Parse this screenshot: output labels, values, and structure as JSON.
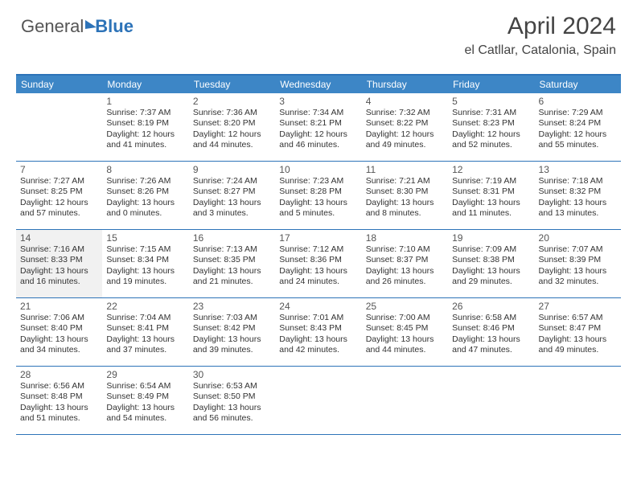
{
  "logo": {
    "text1": "General",
    "text2": "Blue"
  },
  "title": "April 2024",
  "subtitle": "el Catllar, Catalonia, Spain",
  "colors": {
    "header_bg": "#3d86c6",
    "border": "#2d73b8",
    "shade": "#f1f1f1",
    "text": "#333333",
    "logo_blue": "#2d73b8",
    "logo_gray": "#555555"
  },
  "day_headers": [
    "Sunday",
    "Monday",
    "Tuesday",
    "Wednesday",
    "Thursday",
    "Friday",
    "Saturday"
  ],
  "weeks": [
    [
      {
        "empty": true
      },
      {
        "n": "1",
        "sr": "Sunrise: 7:37 AM",
        "ss": "Sunset: 8:19 PM",
        "d1": "Daylight: 12 hours",
        "d2": "and 41 minutes."
      },
      {
        "n": "2",
        "sr": "Sunrise: 7:36 AM",
        "ss": "Sunset: 8:20 PM",
        "d1": "Daylight: 12 hours",
        "d2": "and 44 minutes."
      },
      {
        "n": "3",
        "sr": "Sunrise: 7:34 AM",
        "ss": "Sunset: 8:21 PM",
        "d1": "Daylight: 12 hours",
        "d2": "and 46 minutes."
      },
      {
        "n": "4",
        "sr": "Sunrise: 7:32 AM",
        "ss": "Sunset: 8:22 PM",
        "d1": "Daylight: 12 hours",
        "d2": "and 49 minutes."
      },
      {
        "n": "5",
        "sr": "Sunrise: 7:31 AM",
        "ss": "Sunset: 8:23 PM",
        "d1": "Daylight: 12 hours",
        "d2": "and 52 minutes."
      },
      {
        "n": "6",
        "sr": "Sunrise: 7:29 AM",
        "ss": "Sunset: 8:24 PM",
        "d1": "Daylight: 12 hours",
        "d2": "and 55 minutes."
      }
    ],
    [
      {
        "n": "7",
        "sr": "Sunrise: 7:27 AM",
        "ss": "Sunset: 8:25 PM",
        "d1": "Daylight: 12 hours",
        "d2": "and 57 minutes."
      },
      {
        "n": "8",
        "sr": "Sunrise: 7:26 AM",
        "ss": "Sunset: 8:26 PM",
        "d1": "Daylight: 13 hours",
        "d2": "and 0 minutes."
      },
      {
        "n": "9",
        "sr": "Sunrise: 7:24 AM",
        "ss": "Sunset: 8:27 PM",
        "d1": "Daylight: 13 hours",
        "d2": "and 3 minutes."
      },
      {
        "n": "10",
        "sr": "Sunrise: 7:23 AM",
        "ss": "Sunset: 8:28 PM",
        "d1": "Daylight: 13 hours",
        "d2": "and 5 minutes."
      },
      {
        "n": "11",
        "sr": "Sunrise: 7:21 AM",
        "ss": "Sunset: 8:30 PM",
        "d1": "Daylight: 13 hours",
        "d2": "and 8 minutes."
      },
      {
        "n": "12",
        "sr": "Sunrise: 7:19 AM",
        "ss": "Sunset: 8:31 PM",
        "d1": "Daylight: 13 hours",
        "d2": "and 11 minutes."
      },
      {
        "n": "13",
        "sr": "Sunrise: 7:18 AM",
        "ss": "Sunset: 8:32 PM",
        "d1": "Daylight: 13 hours",
        "d2": "and 13 minutes."
      }
    ],
    [
      {
        "n": "14",
        "sr": "Sunrise: 7:16 AM",
        "ss": "Sunset: 8:33 PM",
        "d1": "Daylight: 13 hours",
        "d2": "and 16 minutes.",
        "shade": true
      },
      {
        "n": "15",
        "sr": "Sunrise: 7:15 AM",
        "ss": "Sunset: 8:34 PM",
        "d1": "Daylight: 13 hours",
        "d2": "and 19 minutes."
      },
      {
        "n": "16",
        "sr": "Sunrise: 7:13 AM",
        "ss": "Sunset: 8:35 PM",
        "d1": "Daylight: 13 hours",
        "d2": "and 21 minutes."
      },
      {
        "n": "17",
        "sr": "Sunrise: 7:12 AM",
        "ss": "Sunset: 8:36 PM",
        "d1": "Daylight: 13 hours",
        "d2": "and 24 minutes."
      },
      {
        "n": "18",
        "sr": "Sunrise: 7:10 AM",
        "ss": "Sunset: 8:37 PM",
        "d1": "Daylight: 13 hours",
        "d2": "and 26 minutes."
      },
      {
        "n": "19",
        "sr": "Sunrise: 7:09 AM",
        "ss": "Sunset: 8:38 PM",
        "d1": "Daylight: 13 hours",
        "d2": "and 29 minutes."
      },
      {
        "n": "20",
        "sr": "Sunrise: 7:07 AM",
        "ss": "Sunset: 8:39 PM",
        "d1": "Daylight: 13 hours",
        "d2": "and 32 minutes."
      }
    ],
    [
      {
        "n": "21",
        "sr": "Sunrise: 7:06 AM",
        "ss": "Sunset: 8:40 PM",
        "d1": "Daylight: 13 hours",
        "d2": "and 34 minutes."
      },
      {
        "n": "22",
        "sr": "Sunrise: 7:04 AM",
        "ss": "Sunset: 8:41 PM",
        "d1": "Daylight: 13 hours",
        "d2": "and 37 minutes."
      },
      {
        "n": "23",
        "sr": "Sunrise: 7:03 AM",
        "ss": "Sunset: 8:42 PM",
        "d1": "Daylight: 13 hours",
        "d2": "and 39 minutes."
      },
      {
        "n": "24",
        "sr": "Sunrise: 7:01 AM",
        "ss": "Sunset: 8:43 PM",
        "d1": "Daylight: 13 hours",
        "d2": "and 42 minutes."
      },
      {
        "n": "25",
        "sr": "Sunrise: 7:00 AM",
        "ss": "Sunset: 8:45 PM",
        "d1": "Daylight: 13 hours",
        "d2": "and 44 minutes."
      },
      {
        "n": "26",
        "sr": "Sunrise: 6:58 AM",
        "ss": "Sunset: 8:46 PM",
        "d1": "Daylight: 13 hours",
        "d2": "and 47 minutes."
      },
      {
        "n": "27",
        "sr": "Sunrise: 6:57 AM",
        "ss": "Sunset: 8:47 PM",
        "d1": "Daylight: 13 hours",
        "d2": "and 49 minutes."
      }
    ],
    [
      {
        "n": "28",
        "sr": "Sunrise: 6:56 AM",
        "ss": "Sunset: 8:48 PM",
        "d1": "Daylight: 13 hours",
        "d2": "and 51 minutes."
      },
      {
        "n": "29",
        "sr": "Sunrise: 6:54 AM",
        "ss": "Sunset: 8:49 PM",
        "d1": "Daylight: 13 hours",
        "d2": "and 54 minutes."
      },
      {
        "n": "30",
        "sr": "Sunrise: 6:53 AM",
        "ss": "Sunset: 8:50 PM",
        "d1": "Daylight: 13 hours",
        "d2": "and 56 minutes."
      },
      {
        "empty": true
      },
      {
        "empty": true
      },
      {
        "empty": true
      },
      {
        "empty": true
      }
    ]
  ]
}
